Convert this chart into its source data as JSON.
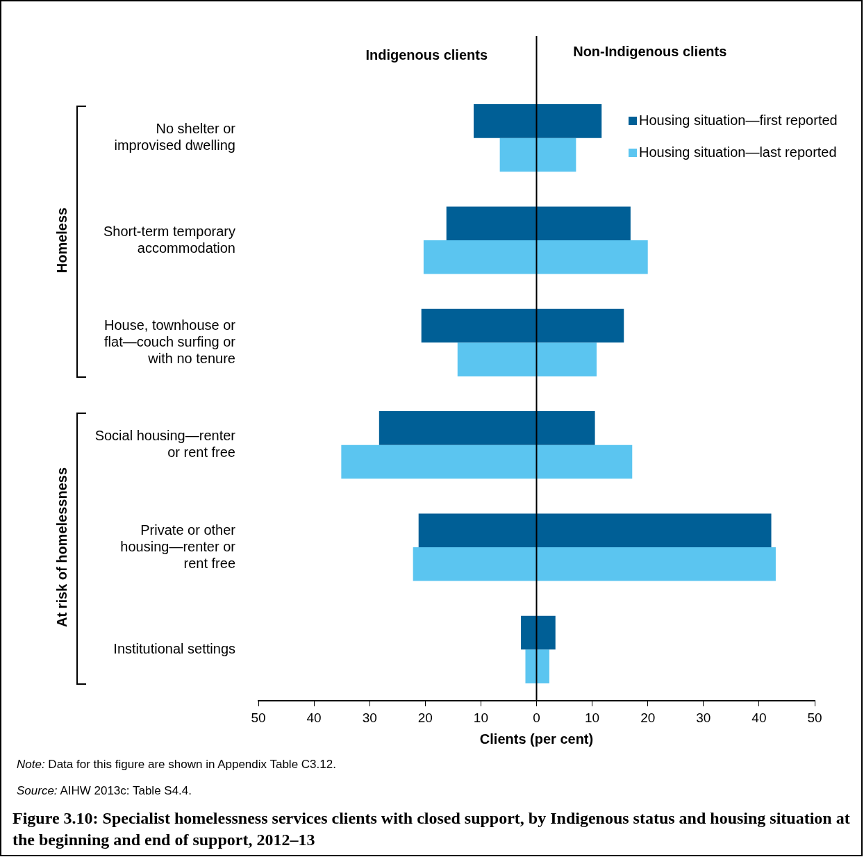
{
  "chart_data": {
    "type": "bar",
    "orientation": "horizontal",
    "title": "Figure 3.10: Specialist homelessness services clients with closed support, by Indigenous status and housing situation at the beginning and end of support, 2012–13",
    "xlabel": "Clients (per cent)",
    "categories": [
      "No shelter or improvised dwelling",
      "Short-term temporary accommodation",
      "House, townhouse or flat—couch surfing or with no tenure",
      "Social housing—renter or rent free",
      "Private or other housing—renter or rent free",
      "Institutional settings"
    ],
    "series": [
      {
        "name": "Housing situation—first reported",
        "color": "#005f96",
        "base": [
          -11.3,
          -16.2,
          -20.7,
          -28.3,
          -21.2,
          -2.8
        ],
        "values": [
          23.0,
          33.1,
          36.4,
          38.8,
          63.4,
          6.2
        ]
      },
      {
        "name": "Housing situation—last reported",
        "color": "#5bc5f0",
        "base": [
          -6.6,
          -20.3,
          -14.2,
          -35.1,
          -22.2,
          -2.0
        ],
        "values": [
          13.7,
          40.3,
          25.0,
          52.3,
          65.2,
          4.3
        ]
      }
    ],
    "xlim": [
      -50,
      50
    ],
    "xticks": [
      {
        "value": -50,
        "label": "50"
      },
      {
        "value": -40,
        "label": "40"
      },
      {
        "value": -30,
        "label": "30"
      },
      {
        "value": -20,
        "label": "20"
      },
      {
        "value": -10,
        "label": "10"
      },
      0,
      10,
      20,
      30,
      40,
      50
    ],
    "grid": false,
    "legend": "top right",
    "ref_lines": [
      {
        "axis": "x",
        "value": 0,
        "color": "#000000"
      }
    ],
    "annotations": [
      "Indigenous clients",
      "Non-Indigenous clients",
      "Homeless",
      "At risk of homelessness",
      "Note: Data for this figure are shown in Appendix Table C3.12.",
      "Source: AIHW 2013c: Table S4.4."
    ]
  }
}
